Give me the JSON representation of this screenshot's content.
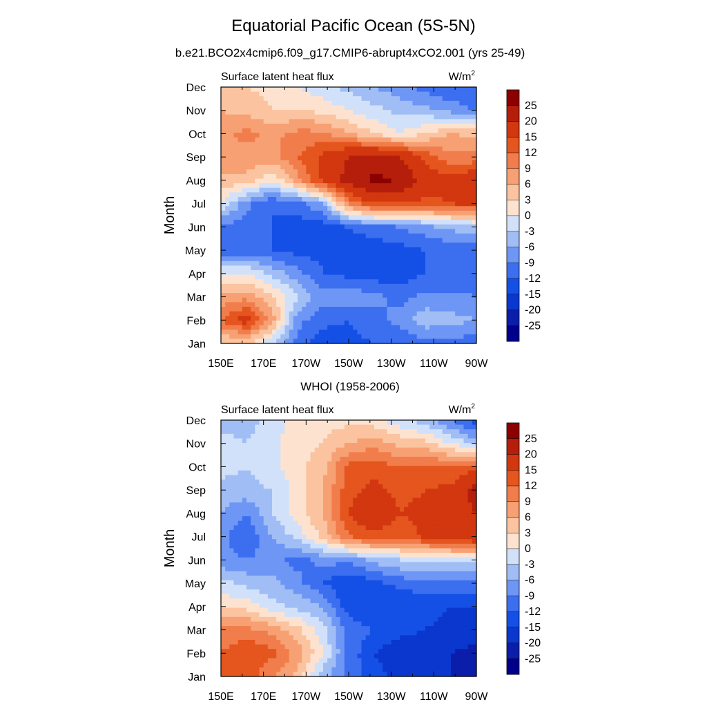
{
  "title": "Equatorial Pacific Ocean (5S-5N)",
  "subtitle": "b.e21.BCO2x4cmip6.f09_g17.CMIP6-abrupt4xCO2.001 (yrs 25-49)",
  "second_title": "WHOI (1958-2006)",
  "chart_data": [
    {
      "type": "heatmap",
      "name": "model",
      "left_label": "Surface latent heat flux",
      "units_base": "W/m",
      "units_exp": "2",
      "ylabel": "Month",
      "x_ticks": [
        "150E",
        "170E",
        "170W",
        "150W",
        "130W",
        "110W",
        "90W"
      ],
      "y_ticks": [
        "Jan",
        "Feb",
        "Mar",
        "Apr",
        "May",
        "Jun",
        "Jul",
        "Aug",
        "Sep",
        "Oct",
        "Nov",
        "Dec"
      ],
      "x_range_deg_east": [
        150,
        270
      ],
      "y_range_month": [
        1,
        12
      ],
      "grid_lon_deg_east": [
        150,
        162,
        174,
        186,
        198,
        210,
        222,
        234,
        246,
        258,
        270
      ],
      "grid_months": [
        1,
        2,
        3,
        4,
        5,
        6,
        7,
        8,
        9,
        10,
        11,
        12
      ],
      "values": [
        [
          2,
          4,
          -3,
          -10,
          -14,
          -13,
          -12,
          -12,
          -10,
          -10,
          -11
        ],
        [
          12,
          17,
          8,
          -8,
          -11,
          -12,
          -10,
          -8,
          -4,
          -5,
          -6
        ],
        [
          7,
          8,
          4,
          -3,
          -8,
          -7,
          -8,
          -10,
          -8,
          -8,
          -9
        ],
        [
          0,
          0,
          -4,
          -8,
          -12,
          -13,
          -14,
          -14,
          -12,
          -12,
          -12
        ],
        [
          -11,
          -11,
          -12,
          -13,
          -13,
          -14,
          -14,
          -13,
          -12,
          -11,
          -11
        ],
        [
          -10,
          -11,
          -12,
          -14,
          -14,
          -12,
          -10,
          -9,
          -7,
          -5,
          -4
        ],
        [
          0,
          -8,
          -12,
          -10,
          -6,
          10,
          15,
          15,
          14,
          15,
          16
        ],
        [
          5,
          5,
          0,
          8,
          16,
          22,
          26,
          25,
          17,
          16,
          19
        ],
        [
          8,
          8,
          8,
          12,
          16,
          20,
          22,
          20,
          14,
          10,
          10
        ],
        [
          8,
          10,
          8,
          10,
          10,
          6,
          3,
          0,
          3,
          6,
          5
        ],
        [
          6,
          5,
          3,
          3,
          2,
          0,
          -2,
          -4,
          -5,
          -7,
          -10
        ],
        [
          3,
          3,
          2,
          0,
          -2,
          -4,
          -6,
          -8,
          -10,
          -12,
          -10
        ]
      ],
      "colorbar_ticks": [
        "25",
        "20",
        "15",
        "12",
        "9",
        "6",
        "3",
        "0",
        "-3",
        "-6",
        "-9",
        "-12",
        "-15",
        "-20",
        "-25"
      ]
    },
    {
      "type": "heatmap",
      "name": "observed",
      "left_label": "Surface latent heat flux",
      "units_base": "W/m",
      "units_exp": "2",
      "ylabel": "Month",
      "x_ticks": [
        "150E",
        "170E",
        "170W",
        "150W",
        "130W",
        "110W",
        "90W"
      ],
      "y_ticks": [
        "Jan",
        "Feb",
        "Mar",
        "Apr",
        "May",
        "Jun",
        "Jul",
        "Aug",
        "Sep",
        "Oct",
        "Nov",
        "Dec"
      ],
      "x_range_deg_east": [
        150,
        270
      ],
      "y_range_month": [
        1,
        12
      ],
      "grid_lon_deg_east": [
        150,
        162,
        174,
        186,
        198,
        210,
        222,
        234,
        246,
        258,
        270
      ],
      "grid_months": [
        1,
        2,
        3,
        4,
        5,
        6,
        7,
        8,
        9,
        10,
        11,
        12
      ],
      "values": [
        [
          12,
          14,
          9,
          5,
          -5,
          -10,
          -14,
          -16,
          -18,
          -20,
          -24
        ],
        [
          12,
          15,
          13,
          8,
          0,
          -10,
          -15,
          -17,
          -18,
          -20,
          -22
        ],
        [
          10,
          10,
          8,
          4,
          -2,
          -10,
          -12,
          -14,
          -15,
          -16,
          -17
        ],
        [
          2,
          2,
          -2,
          -4,
          -6,
          -14,
          -15,
          -15,
          -14,
          -15,
          -15
        ],
        [
          -2,
          -4,
          -5,
          -8,
          -12,
          -15,
          -13,
          -11,
          -10,
          -10,
          -10
        ],
        [
          -8,
          -9,
          -8,
          -10,
          -8,
          -8,
          -5,
          -3,
          -2,
          -2,
          -3
        ],
        [
          -8,
          -12,
          -6,
          -2,
          4,
          12,
          14,
          12,
          16,
          18,
          20
        ],
        [
          -6,
          -9,
          -3,
          2,
          6,
          15,
          19,
          15,
          16,
          18,
          20
        ],
        [
          -4,
          -4,
          -3,
          1,
          6,
          14,
          16,
          14,
          15,
          16,
          22
        ],
        [
          -2,
          -3,
          -1,
          2,
          5,
          13,
          14,
          12,
          13,
          12,
          14
        ],
        [
          -2,
          -3,
          -1,
          2,
          3,
          6,
          8,
          5,
          4,
          0,
          -4
        ],
        [
          -4,
          -4,
          -2,
          2,
          2,
          2,
          1,
          -2,
          -5,
          -9,
          -14
        ]
      ],
      "colorbar_ticks": [
        "25",
        "20",
        "15",
        "12",
        "9",
        "6",
        "3",
        "0",
        "-3",
        "-6",
        "-9",
        "-12",
        "-15",
        "-20",
        "-25"
      ]
    }
  ],
  "colorscale": {
    "levels": [
      -25,
      -20,
      -15,
      -12,
      -9,
      -6,
      -3,
      0,
      3,
      6,
      9,
      12,
      15,
      20,
      25
    ],
    "colors": [
      "#00008c",
      "#0a1eaa",
      "#0a37cd",
      "#1450e6",
      "#3c6ef0",
      "#6e96f5",
      "#a0bef5",
      "#d2e1fa",
      "#fde3cf",
      "#fbc39f",
      "#f7a073",
      "#f07d4b",
      "#e5551e",
      "#d2370f",
      "#b41e0a",
      "#8c0000"
    ]
  }
}
